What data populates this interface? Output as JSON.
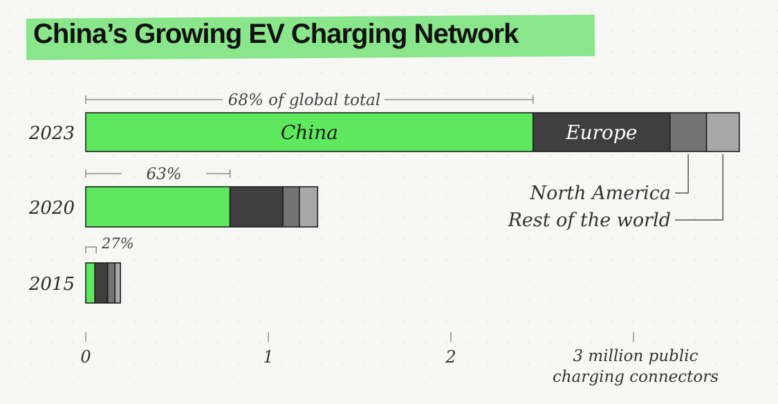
{
  "title": "China’s Growing EV Charging Network",
  "colors": {
    "china": "#5ee85e",
    "europe": "#3f3f3f",
    "north_america": "#747474",
    "rest_of_world": "#a8a8a8",
    "title_highlight": "#8ae68a"
  },
  "chart_data": {
    "type": "bar",
    "orientation": "horizontal",
    "stacked": true,
    "title": "China’s Growing EV Charging Network",
    "categories": [
      "2023",
      "2020",
      "2015"
    ],
    "series": [
      {
        "name": "China",
        "values": [
          2.45,
          0.79,
          0.05
        ]
      },
      {
        "name": "Europe",
        "values": [
          0.75,
          0.29,
          0.07
        ]
      },
      {
        "name": "North America",
        "values": [
          0.2,
          0.09,
          0.04
        ]
      },
      {
        "name": "Rest of the world",
        "values": [
          0.18,
          0.1,
          0.03
        ]
      }
    ],
    "share_labels": [
      "68% of global total",
      "63%",
      "27%"
    ],
    "x_ticks": [
      "0",
      "1",
      "2"
    ],
    "x_unit_label": "3 million public charging connectors",
    "xlim": [
      0,
      3.6
    ],
    "grid": false
  }
}
